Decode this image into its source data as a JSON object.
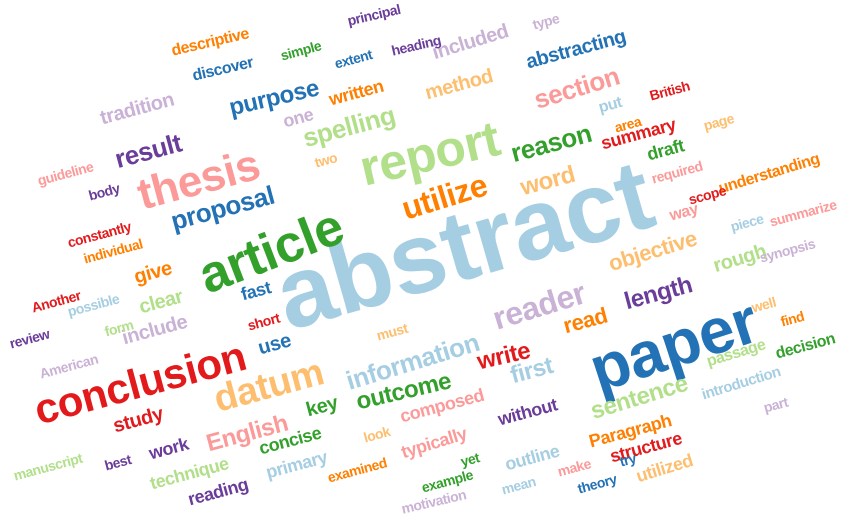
{
  "palette": {
    "blue": "#2272b5",
    "light_blue": "#a6cee3",
    "green": "#33a02c",
    "light_green": "#b2df8a",
    "red": "#e31a1c",
    "pink": "#fb9a99",
    "orange": "#ff7f00",
    "light_orange": "#fdbf6f",
    "purple": "#6a3d9a",
    "lavender": "#cab2d6"
  },
  "words": [
    {
      "text": "abstract",
      "color": "light_blue"
    },
    {
      "text": "paper",
      "color": "blue"
    },
    {
      "text": "article",
      "color": "green"
    },
    {
      "text": "report",
      "color": "light_green"
    },
    {
      "text": "thesis",
      "color": "pink"
    },
    {
      "text": "conclusion",
      "color": "red"
    },
    {
      "text": "datum",
      "color": "light_orange"
    },
    {
      "text": "reader",
      "color": "lavender"
    },
    {
      "text": "utilize",
      "color": "orange"
    },
    {
      "text": "proposal",
      "color": "blue"
    },
    {
      "text": "result",
      "color": "purple"
    },
    {
      "text": "information",
      "color": "light_blue"
    },
    {
      "text": "spelling",
      "color": "light_green"
    },
    {
      "text": "reason",
      "color": "green"
    },
    {
      "text": "section",
      "color": "pink"
    },
    {
      "text": "purpose",
      "color": "blue"
    },
    {
      "text": "word",
      "color": "light_orange"
    },
    {
      "text": "English",
      "color": "pink"
    },
    {
      "text": "outcome",
      "color": "green"
    },
    {
      "text": "sentence",
      "color": "light_green"
    },
    {
      "text": "write",
      "color": "red"
    },
    {
      "text": "first",
      "color": "light_blue"
    },
    {
      "text": "length",
      "color": "purple"
    },
    {
      "text": "read",
      "color": "orange"
    },
    {
      "text": "objective",
      "color": "light_orange"
    },
    {
      "text": "abstracting",
      "color": "blue"
    },
    {
      "text": "method",
      "color": "light_orange"
    },
    {
      "text": "included",
      "color": "lavender"
    },
    {
      "text": "written",
      "color": "orange"
    },
    {
      "text": "one",
      "color": "lavender"
    },
    {
      "text": "summary",
      "color": "red"
    },
    {
      "text": "draft",
      "color": "green"
    },
    {
      "text": "understanding",
      "color": "orange"
    },
    {
      "text": "way",
      "color": "pink"
    },
    {
      "text": "rough",
      "color": "light_green"
    },
    {
      "text": "clear",
      "color": "light_green"
    },
    {
      "text": "give",
      "color": "orange"
    },
    {
      "text": "include",
      "color": "lavender"
    },
    {
      "text": "fast",
      "color": "blue"
    },
    {
      "text": "use",
      "color": "blue"
    },
    {
      "text": "key",
      "color": "green"
    },
    {
      "text": "study",
      "color": "red"
    },
    {
      "text": "composed",
      "color": "pink"
    },
    {
      "text": "typically",
      "color": "pink"
    },
    {
      "text": "without",
      "color": "purple"
    },
    {
      "text": "outline",
      "color": "light_blue"
    },
    {
      "text": "Paragraph",
      "color": "orange"
    },
    {
      "text": "structure",
      "color": "red"
    },
    {
      "text": "utilized",
      "color": "light_orange"
    },
    {
      "text": "concise",
      "color": "green"
    },
    {
      "text": "technique",
      "color": "light_green"
    },
    {
      "text": "primary",
      "color": "light_blue"
    },
    {
      "text": "reading",
      "color": "purple"
    },
    {
      "text": "work",
      "color": "purple"
    },
    {
      "text": "passage",
      "color": "light_green"
    },
    {
      "text": "decision",
      "color": "green"
    },
    {
      "text": "introduction",
      "color": "light_blue"
    },
    {
      "text": "tradition",
      "color": "lavender"
    },
    {
      "text": "descriptive",
      "color": "orange"
    },
    {
      "text": "discover",
      "color": "blue"
    },
    {
      "text": "simple",
      "color": "green"
    },
    {
      "text": "extent",
      "color": "blue"
    },
    {
      "text": "principal",
      "color": "purple"
    },
    {
      "text": "heading",
      "color": "purple"
    },
    {
      "text": "type",
      "color": "lavender"
    },
    {
      "text": "put",
      "color": "light_blue"
    },
    {
      "text": "British",
      "color": "red"
    },
    {
      "text": "area",
      "color": "orange"
    },
    {
      "text": "page",
      "color": "light_orange"
    },
    {
      "text": "required",
      "color": "pink"
    },
    {
      "text": "scope",
      "color": "red"
    },
    {
      "text": "piece",
      "color": "light_blue"
    },
    {
      "text": "summarize",
      "color": "pink"
    },
    {
      "text": "synopsis",
      "color": "lavender"
    },
    {
      "text": "well",
      "color": "light_orange"
    },
    {
      "text": "find",
      "color": "orange"
    },
    {
      "text": "part",
      "color": "lavender"
    },
    {
      "text": "try",
      "color": "blue"
    },
    {
      "text": "theory",
      "color": "blue"
    },
    {
      "text": "make",
      "color": "pink"
    },
    {
      "text": "mean",
      "color": "light_blue"
    },
    {
      "text": "motivation",
      "color": "lavender"
    },
    {
      "text": "example",
      "color": "green"
    },
    {
      "text": "yet",
      "color": "green"
    },
    {
      "text": "examined",
      "color": "orange"
    },
    {
      "text": "look",
      "color": "light_orange"
    },
    {
      "text": "must",
      "color": "light_orange"
    },
    {
      "text": "short",
      "color": "red"
    },
    {
      "text": "form",
      "color": "light_green"
    },
    {
      "text": "possible",
      "color": "light_blue"
    },
    {
      "text": "American",
      "color": "lavender"
    },
    {
      "text": "review",
      "color": "purple"
    },
    {
      "text": "Another",
      "color": "red"
    },
    {
      "text": "individual",
      "color": "orange"
    },
    {
      "text": "constantly",
      "color": "red"
    },
    {
      "text": "body",
      "color": "purple"
    },
    {
      "text": "guideline",
      "color": "pink"
    },
    {
      "text": "two",
      "color": "light_orange"
    },
    {
      "text": "manuscript",
      "color": "light_green"
    },
    {
      "text": "best",
      "color": "purple"
    }
  ]
}
